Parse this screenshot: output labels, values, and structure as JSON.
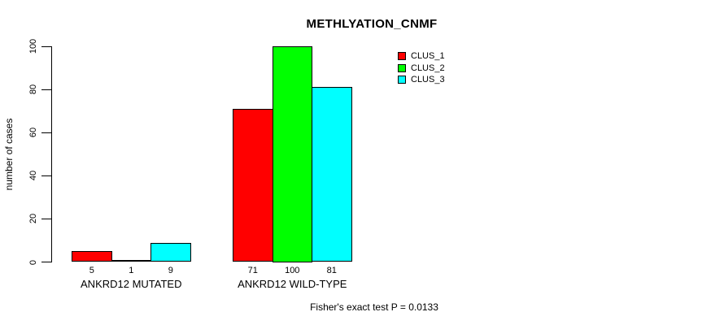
{
  "chart_data": {
    "type": "bar",
    "title": "METHLYATION_CNMF",
    "xlabel": "",
    "ylabel": "number of cases",
    "ylim": [
      0,
      100
    ],
    "yticks": [
      0,
      20,
      40,
      60,
      80,
      100
    ],
    "grid": false,
    "legend_position": "top-right-inside",
    "categories": [
      "ANKRD12 MUTATED",
      "ANKRD12 WILD-TYPE"
    ],
    "series": [
      {
        "name": "CLUS_1",
        "color": "#ff0000",
        "values": [
          5,
          71
        ]
      },
      {
        "name": "CLUS_2",
        "color": "#00ff00",
        "values": [
          1,
          100
        ]
      },
      {
        "name": "CLUS_3",
        "color": "#00ffff",
        "values": [
          9,
          81
        ]
      }
    ],
    "bar_value_labels": [
      [
        "5",
        "1",
        "9"
      ],
      [
        "71",
        "100",
        "81"
      ]
    ],
    "annotation": "Fisher's exact test P = 0.0133",
    "text_color": "#000000",
    "axis_color": "#000000",
    "background_color": "#ffffff"
  }
}
